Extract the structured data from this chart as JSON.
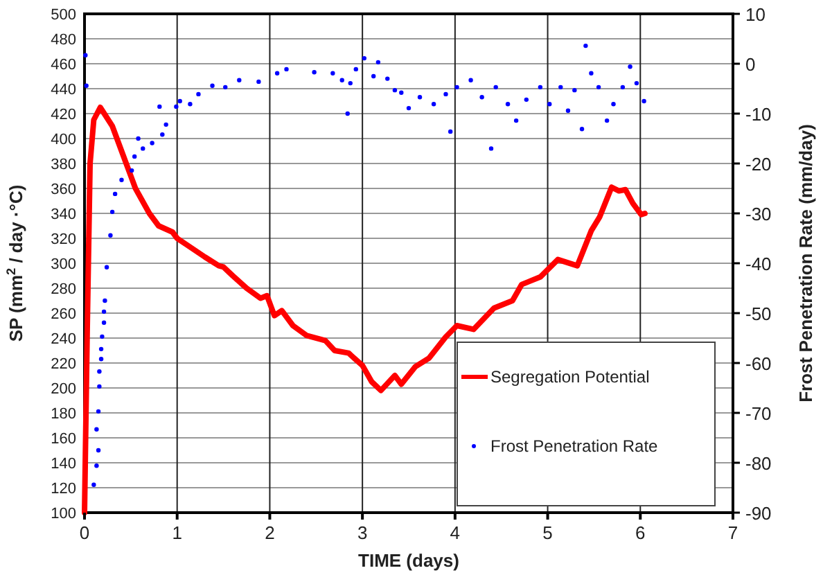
{
  "chart_data": {
    "type": "line",
    "xlabel": "TIME (days)",
    "ylabel": "SP (mm$^{2}$ / day ·°C)",
    "y2label": "Frost Penetration Rate (mm/day)",
    "xlim": [
      0,
      7
    ],
    "xticks": [
      0,
      1,
      2,
      3,
      4,
      5,
      6,
      7
    ],
    "ylim": [
      100,
      500
    ],
    "yticks": [
      100,
      120,
      140,
      160,
      180,
      200,
      220,
      240,
      260,
      280,
      300,
      320,
      340,
      360,
      380,
      400,
      420,
      440,
      460,
      480,
      500
    ],
    "y2lim": [
      -90,
      10
    ],
    "y2ticks": [
      -90,
      -80,
      -70,
      -60,
      -50,
      -40,
      -30,
      -20,
      -10,
      0,
      10
    ],
    "grid": true,
    "legend": "bottom right",
    "series": [
      {
        "name": "Segregation Potential",
        "color": "#ff0000",
        "line_style": "solid",
        "x": [
          0,
          0.03,
          0.06,
          0.1,
          0.17,
          0.3,
          0.45,
          0.55,
          0.7,
          0.8,
          0.95,
          1.0,
          1.1,
          1.3,
          1.45,
          1.5,
          1.6,
          1.75,
          1.9,
          1.97,
          2.05,
          2.13,
          2.25,
          2.4,
          2.6,
          2.7,
          2.85,
          3.0,
          3.1,
          3.2,
          3.35,
          3.42,
          3.57,
          3.72,
          3.9,
          4.02,
          4.2,
          4.42,
          4.62,
          4.72,
          4.92,
          5.11,
          5.32,
          5.47,
          5.56,
          5.69,
          5.77,
          5.84,
          5.92,
          6.01,
          6.05
        ],
        "values": [
          100,
          250,
          380,
          415,
          425,
          410,
          380,
          360,
          340,
          330,
          325,
          320,
          315,
          305,
          298,
          297,
          290,
          280,
          272,
          274,
          258,
          262,
          250,
          242,
          238,
          230,
          228,
          218,
          205,
          198,
          210,
          203,
          217,
          224,
          241,
          250,
          247,
          264,
          270,
          283,
          289,
          303,
          298,
          326,
          337,
          361,
          358,
          359,
          348,
          339,
          340
        ]
      },
      {
        "name": "Frost Penetration Rate",
        "type": "scatter",
        "axis": "y2",
        "color": "#0000ff",
        "marker": "circle",
        "x": [
          0.01,
          0.02,
          0.1,
          0.13,
          0.15,
          0.13,
          0.15,
          0.16,
          0.16,
          0.18,
          0.18,
          0.19,
          0.21,
          0.21,
          0.22,
          0.24,
          0.28,
          0.3,
          0.33,
          0.4,
          0.51,
          0.54,
          0.58,
          0.63,
          0.73,
          0.81,
          0.84,
          0.88,
          0.99,
          1.03,
          1.14,
          1.23,
          1.38,
          1.52,
          1.67,
          1.88,
          2.08,
          2.18,
          2.48,
          2.68,
          2.78,
          2.84,
          2.87,
          2.93,
          3.02,
          3.12,
          3.17,
          3.27,
          3.35,
          3.42,
          3.5,
          3.62,
          3.77,
          3.9,
          3.95,
          4.02,
          4.17,
          4.29,
          4.39,
          4.44,
          4.57,
          4.66,
          4.77,
          4.92,
          5.02,
          5.14,
          5.22,
          5.29,
          5.37,
          5.41,
          5.47,
          5.55,
          5.64,
          5.71,
          5.81,
          5.89,
          5.96,
          6.04
        ],
        "values": [
          1.7,
          -4.4,
          -84.4,
          -80.6,
          -77.5,
          -73.3,
          -69.7,
          -64.7,
          -61.7,
          -59.2,
          -57.2,
          -54.7,
          -51.9,
          -49.7,
          -47.5,
          -40.8,
          -34.4,
          -29.7,
          -26.1,
          -23.3,
          -21.4,
          -18.6,
          -15,
          -17,
          -15.9,
          -8.6,
          -14.2,
          -12.2,
          -8.6,
          -7.5,
          -8.1,
          -6.1,
          -4.4,
          -4.7,
          -3.3,
          -3.6,
          -1.9,
          -1.1,
          -1.7,
          -1.9,
          -3.3,
          -10,
          -3.9,
          -1.1,
          1.1,
          -2.5,
          0.3,
          -3,
          -5.3,
          -5.8,
          -8.9,
          -6.7,
          -8.1,
          -6.1,
          -13.6,
          -4.7,
          -3.3,
          -6.7,
          -17,
          -4.7,
          -8.1,
          -11.4,
          -7.2,
          -4.7,
          -8.1,
          -4.7,
          -9.4,
          -5.3,
          -13.1,
          3.6,
          -1.9,
          -4.7,
          -11.4,
          -8.1,
          -4.7,
          -0.6,
          -3.9,
          -7.5
        ]
      }
    ]
  }
}
